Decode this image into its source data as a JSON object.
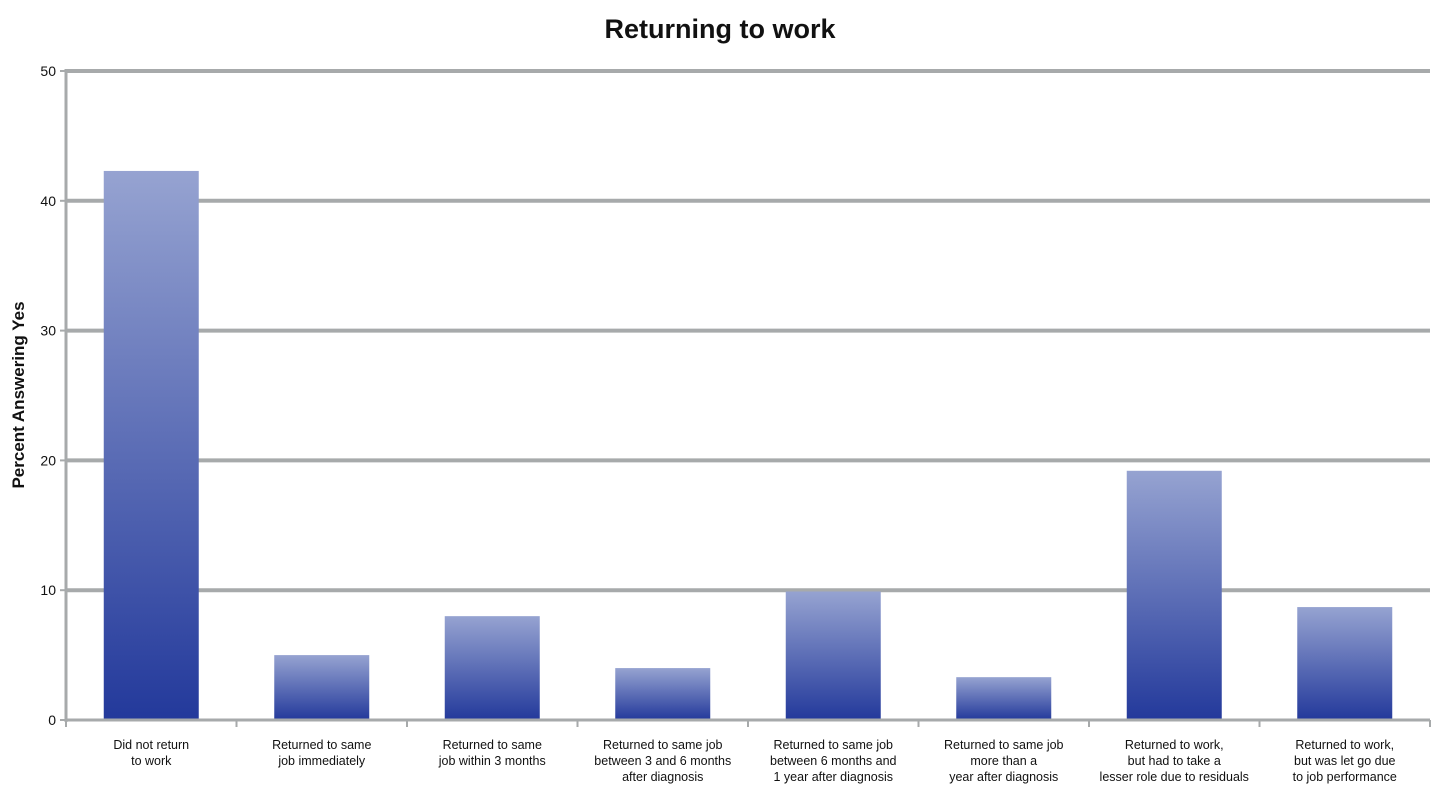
{
  "chart_data": {
    "type": "bar",
    "title": "Returning to work",
    "ylabel": "Percent Answering Yes",
    "xlabel": "",
    "ylim": [
      0,
      50
    ],
    "yticks": [
      0,
      10,
      20,
      30,
      40,
      50
    ],
    "grid": true,
    "legend": "none",
    "bar_color_top": "#96a3d1",
    "bar_color_bottom": "#23399b",
    "grid_color": "#a7aaab",
    "categories": [
      [
        "Did not return",
        "to work"
      ],
      [
        "Returned to same",
        "job immediately"
      ],
      [
        "Returned to same",
        "job within 3 months"
      ],
      [
        "Returned to same job",
        "between 3 and 6 months",
        "after diagnosis"
      ],
      [
        "Returned to same job",
        "between 6 months and",
        "1 year after diagnosis"
      ],
      [
        "Returned to same job",
        "more than a",
        "year after diagnosis"
      ],
      [
        "Returned to work,",
        "but had to take a",
        "lesser role due to residuals"
      ],
      [
        "Returned to work,",
        "but was let go due",
        "to job performance"
      ]
    ],
    "values": [
      42.3,
      5.0,
      8.0,
      4.0,
      9.9,
      3.3,
      19.2,
      8.7
    ]
  }
}
